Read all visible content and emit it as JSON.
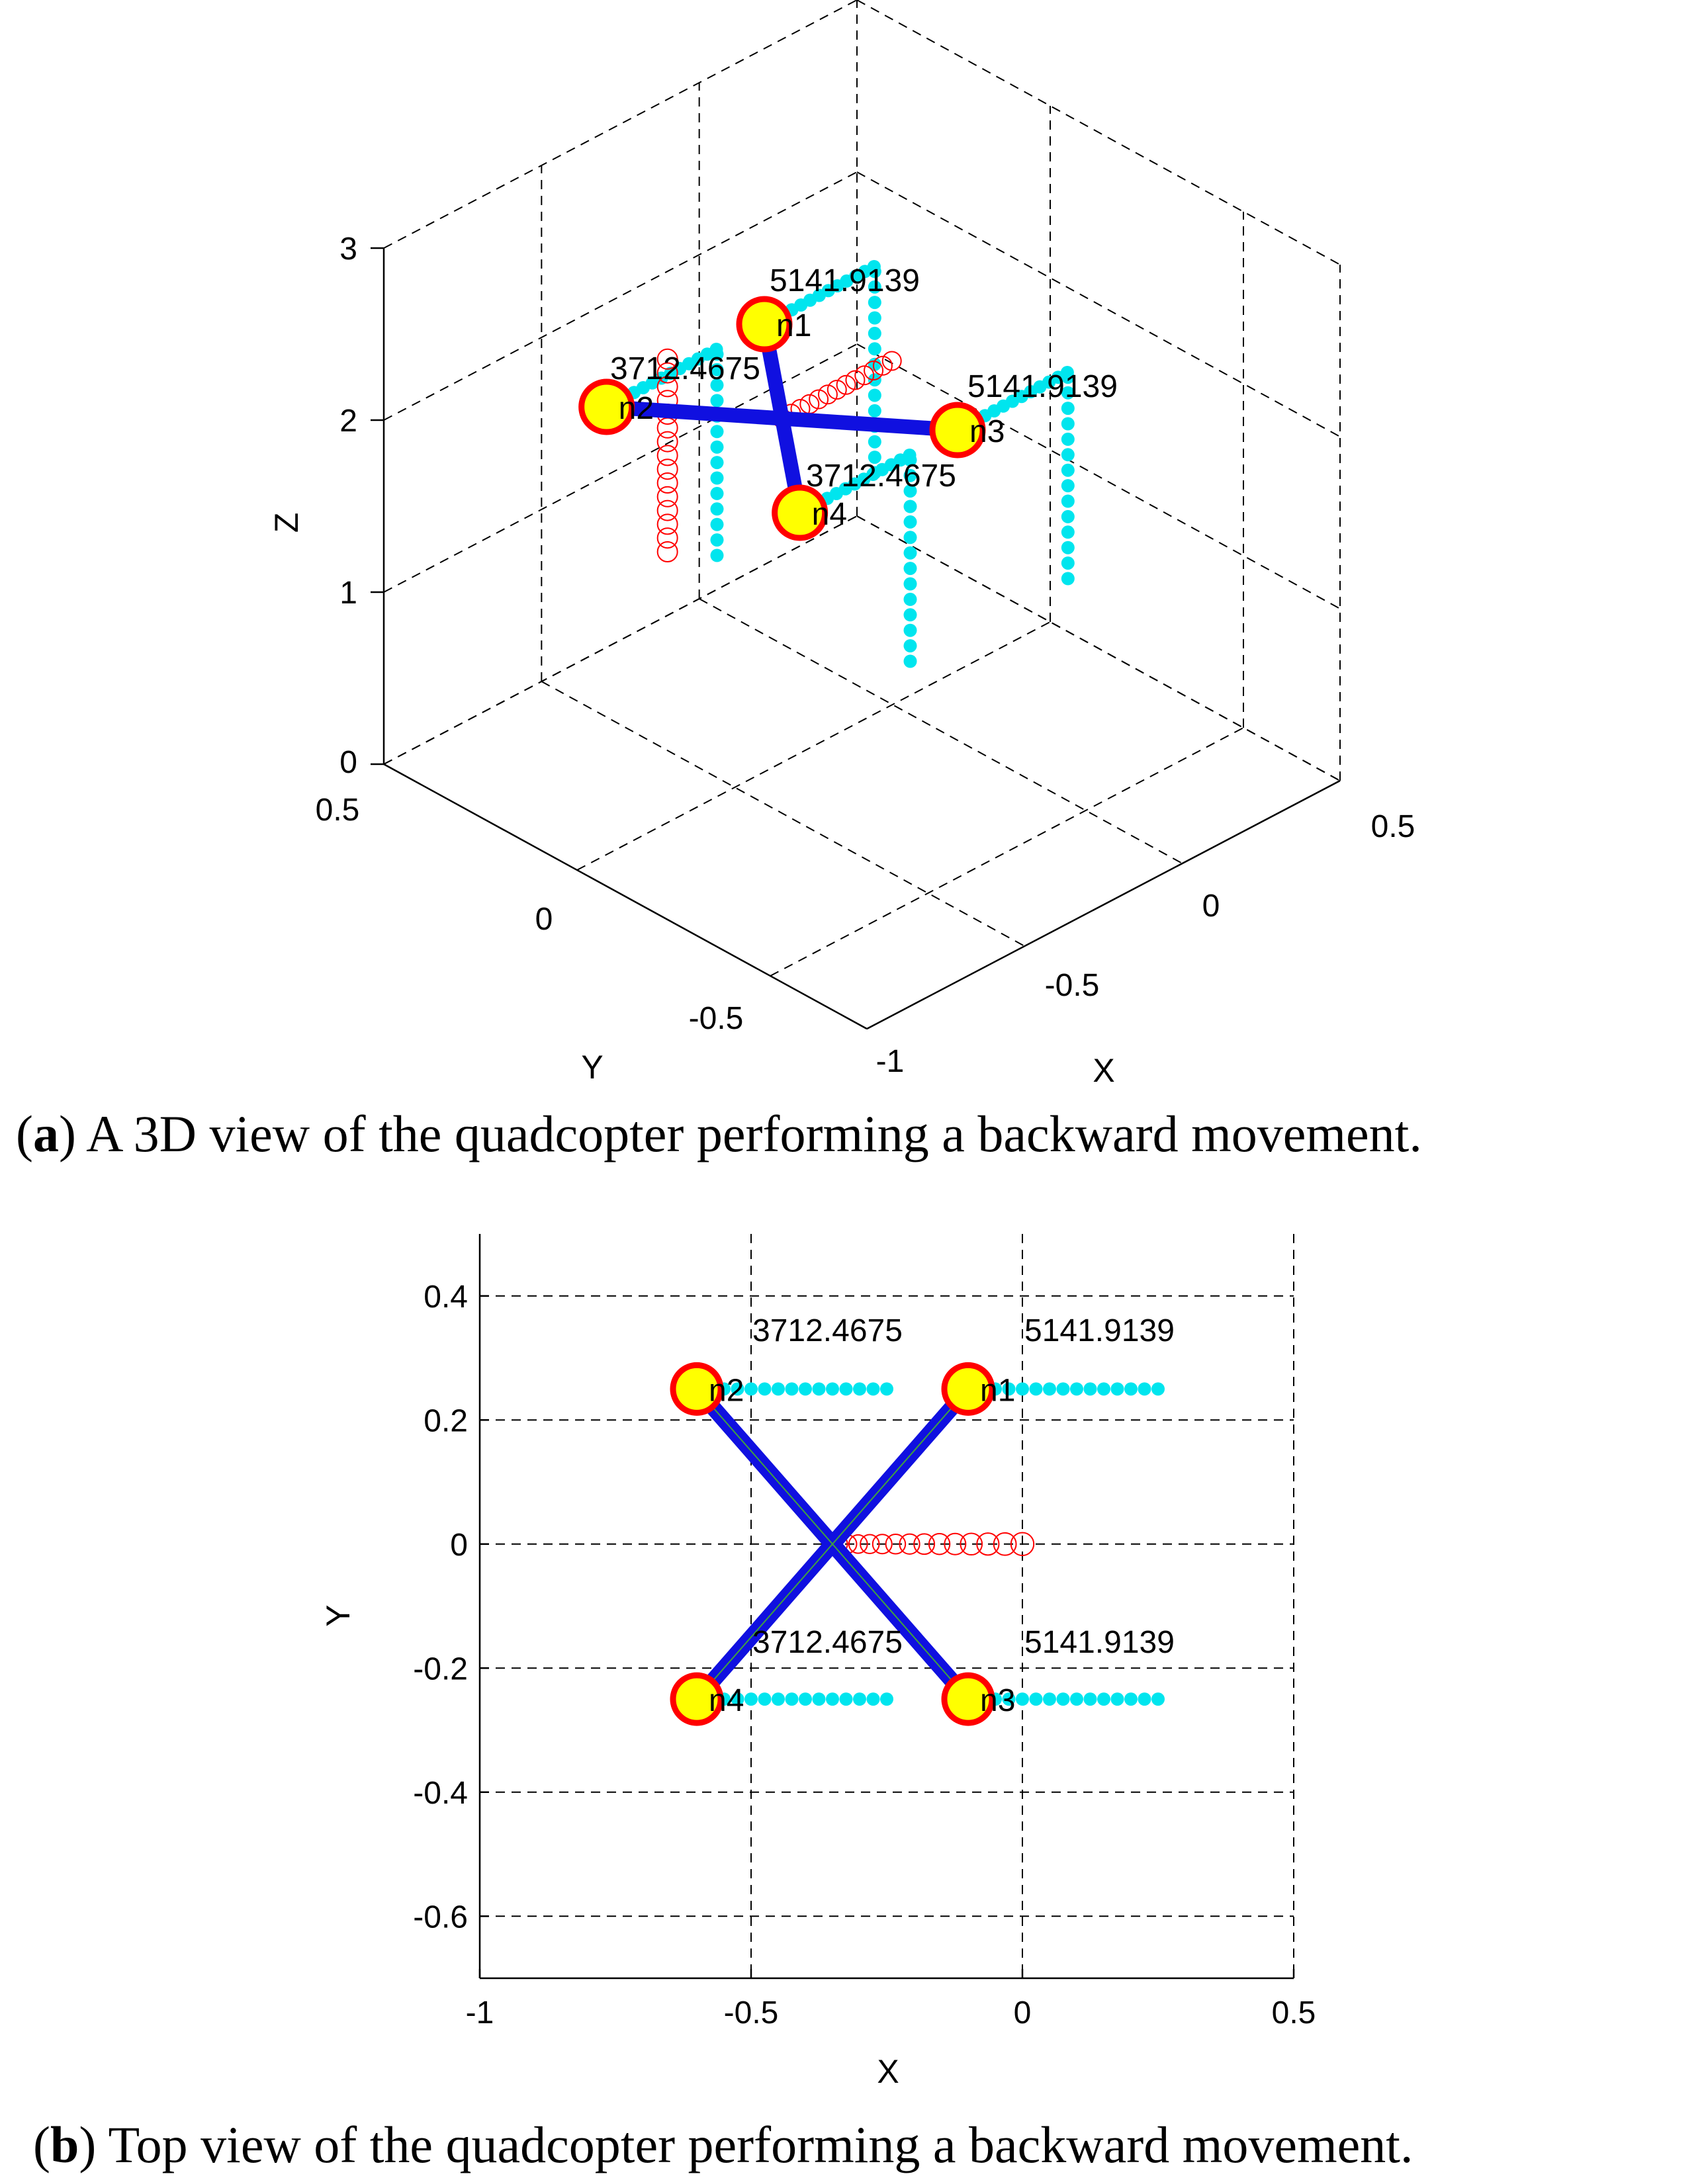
{
  "chart_data": [
    {
      "type": "scatter",
      "view": "3d",
      "caption_letter": "a",
      "caption_text": "A 3D view of the quadcopter performing a backward movement.",
      "xlabel": "X",
      "ylabel": "Y",
      "zlabel": "Z",
      "x_ticks": [
        "-1",
        "-0.5",
        "0",
        "0.5"
      ],
      "y_ticks": [
        "-0.5",
        "0",
        "0.5"
      ],
      "z_ticks": [
        "0",
        "1",
        "2",
        "3"
      ],
      "xlim": [
        -1,
        0.5
      ],
      "ylim": [
        -0.75,
        0.5
      ],
      "zlim": [
        0,
        3
      ],
      "grid": true,
      "rotor_labels": [
        {
          "id": "1",
          "value": "5141.9139",
          "label_text": "n1",
          "x": -0.1,
          "y": 0.25,
          "z": 2.0
        },
        {
          "id": "2",
          "value": "3712.4675",
          "label_text": "n2",
          "x": -0.6,
          "y": 0.25,
          "z": 2.0
        },
        {
          "id": "3",
          "value": "5141.9139",
          "label_text": "n3",
          "x": -0.1,
          "y": -0.25,
          "z": 2.0
        },
        {
          "id": "4",
          "value": "3712.4675",
          "label_text": "n4",
          "x": -0.6,
          "y": -0.25,
          "z": 2.0
        }
      ],
      "colors": {
        "trail": "#00e5ee",
        "center": "#ff0000",
        "arm": "#1010e0",
        "rotor_fill": "#ffff00",
        "rotor_edge": "#ff0000"
      }
    },
    {
      "type": "scatter",
      "view": "top",
      "caption_letter": "b",
      "caption_text": "Top view of the quadcopter performing a backward movement.",
      "xlabel": "X",
      "ylabel": "Y",
      "x_ticks": [
        -1,
        -0.5,
        0,
        0.5
      ],
      "y_ticks": [
        0.4,
        0.2,
        0,
        -0.2,
        -0.4,
        -0.6
      ],
      "xlim": [
        -1,
        0.5
      ],
      "ylim": [
        -0.7,
        0.5
      ],
      "grid": true,
      "rotors": [
        {
          "id": "1",
          "value": "5141.9139",
          "label_text": "n1",
          "x": -0.1,
          "y": 0.25
        },
        {
          "id": "2",
          "value": "3712.4675",
          "label_text": "n2",
          "x": -0.6,
          "y": 0.25
        },
        {
          "id": "3",
          "value": "5141.9139",
          "label_text": "n3",
          "x": -0.1,
          "y": -0.25
        },
        {
          "id": "4",
          "value": "3712.4675",
          "label_text": "n4",
          "x": -0.6,
          "y": -0.25
        }
      ],
      "trails": [
        {
          "y": 0.25,
          "x_from": -0.6,
          "x_to": -0.25
        },
        {
          "y": 0.25,
          "x_from": -0.1,
          "x_to": 0.25
        },
        {
          "y": -0.25,
          "x_from": -0.6,
          "x_to": -0.25
        },
        {
          "y": -0.25,
          "x_from": -0.1,
          "x_to": 0.25
        }
      ],
      "center_path": {
        "y": 0,
        "x_from": -0.35,
        "x_to": 0.0
      },
      "colors": {
        "trail": "#00e5ee",
        "center": "#ff0000",
        "arm": "#1010e0",
        "rotor_fill": "#ffff00",
        "rotor_edge": "#ff0000"
      }
    }
  ]
}
